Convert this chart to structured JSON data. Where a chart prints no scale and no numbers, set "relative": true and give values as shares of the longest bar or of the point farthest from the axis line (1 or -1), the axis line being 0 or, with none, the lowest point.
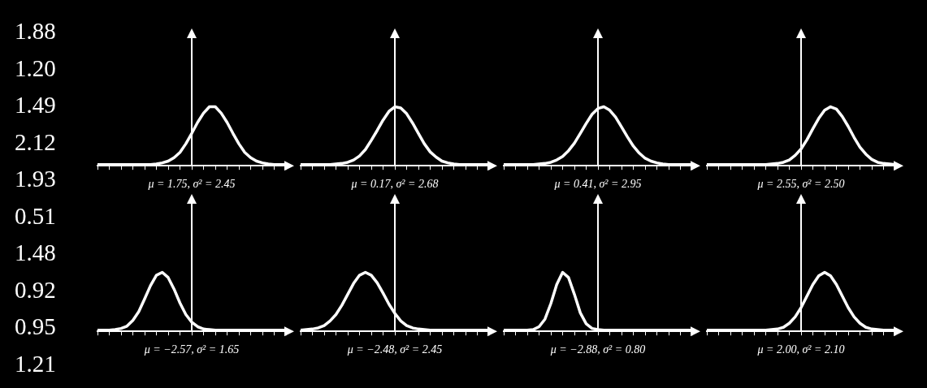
{
  "chart_data": [
    {
      "type": "other",
      "annotations": [
        "1.88",
        "1.20",
        "1.49",
        "2.12",
        "1.93",
        "0.51",
        "1.48",
        "0.92",
        "0.95",
        "1.21"
      ]
    },
    {
      "type": "line",
      "relative": true,
      "tick_labels": false,
      "marker": "none",
      "xlabel": "μ = 1.75, σ² = 2.45",
      "categories": [
        null,
        null,
        null,
        null,
        null,
        null,
        null,
        null,
        null,
        null,
        null,
        null,
        null,
        null,
        null,
        null,
        null,
        null,
        null,
        null,
        null,
        null,
        null,
        null,
        null,
        null,
        null,
        null,
        null,
        null,
        null,
        null,
        null
      ],
      "series": [
        {
          "color": "#ffffff",
          "values": [
            0,
            0,
            0,
            0,
            0,
            0,
            0,
            0,
            0,
            0,
            0.01,
            0.03,
            0.06,
            0.12,
            0.21,
            0.36,
            0.54,
            0.73,
            0.89,
            1,
            1,
            0.89,
            0.73,
            0.54,
            0.36,
            0.21,
            0.12,
            0.06,
            0.03,
            0.01,
            0,
            0,
            0
          ]
        }
      ]
    },
    {
      "type": "line",
      "relative": true,
      "tick_labels": false,
      "marker": "none",
      "xlabel": "μ = 0.17, σ² = 2.68",
      "categories": [
        null,
        null,
        null,
        null,
        null,
        null,
        null,
        null,
        null,
        null,
        null,
        null,
        null,
        null,
        null,
        null,
        null,
        null,
        null,
        null,
        null,
        null,
        null,
        null,
        null,
        null,
        null,
        null,
        null,
        null,
        null,
        null,
        null
      ],
      "series": [
        {
          "color": "#ffffff",
          "values": [
            0,
            0,
            0,
            0,
            0,
            0,
            0.01,
            0.02,
            0.04,
            0.08,
            0.15,
            0.26,
            0.42,
            0.59,
            0.77,
            0.92,
            1,
            0.98,
            0.88,
            0.72,
            0.54,
            0.36,
            0.22,
            0.13,
            0.06,
            0.03,
            0.01,
            0,
            0,
            0,
            0,
            0,
            0
          ]
        }
      ]
    },
    {
      "type": "line",
      "relative": true,
      "tick_labels": false,
      "marker": "none",
      "xlabel": "μ = 0.41, σ² = 2.95",
      "categories": [
        null,
        null,
        null,
        null,
        null,
        null,
        null,
        null,
        null,
        null,
        null,
        null,
        null,
        null,
        null,
        null,
        null,
        null,
        null,
        null,
        null,
        null,
        null,
        null,
        null,
        null,
        null,
        null,
        null,
        null,
        null,
        null,
        null
      ],
      "series": [
        {
          "color": "#ffffff",
          "values": [
            0,
            0,
            0,
            0,
            0,
            0,
            0.01,
            0.02,
            0.04,
            0.08,
            0.14,
            0.24,
            0.37,
            0.54,
            0.71,
            0.87,
            0.97,
            1,
            0.94,
            0.82,
            0.65,
            0.48,
            0.32,
            0.2,
            0.11,
            0.06,
            0.03,
            0.01,
            0,
            0,
            0,
            0,
            0
          ]
        }
      ]
    },
    {
      "type": "line",
      "relative": true,
      "tick_labels": false,
      "marker": "none",
      "xlabel": "μ = 2.55, σ² = 2.50",
      "categories": [
        null,
        null,
        null,
        null,
        null,
        null,
        null,
        null,
        null,
        null,
        null,
        null,
        null,
        null,
        null,
        null,
        null,
        null,
        null,
        null,
        null,
        null,
        null,
        null,
        null,
        null,
        null,
        null,
        null,
        null,
        null,
        null,
        null
      ],
      "series": [
        {
          "color": "#ffffff",
          "values": [
            0,
            0,
            0,
            0,
            0,
            0,
            0,
            0,
            0,
            0,
            0,
            0.01,
            0.02,
            0.04,
            0.08,
            0.16,
            0.27,
            0.43,
            0.62,
            0.8,
            0.94,
            1,
            0.96,
            0.83,
            0.66,
            0.47,
            0.3,
            0.18,
            0.09,
            0.04,
            0.02,
            0.01,
            0
          ]
        }
      ]
    },
    {
      "type": "line",
      "relative": true,
      "tick_labels": false,
      "marker": "none",
      "xlabel": "μ = −2.57, σ² = 1.65",
      "categories": [
        null,
        null,
        null,
        null,
        null,
        null,
        null,
        null,
        null,
        null,
        null,
        null,
        null,
        null,
        null,
        null,
        null,
        null,
        null,
        null,
        null,
        null,
        null,
        null,
        null,
        null,
        null,
        null,
        null,
        null,
        null,
        null,
        null
      ],
      "series": [
        {
          "color": "#ffffff",
          "values": [
            0,
            0,
            0,
            0.01,
            0.03,
            0.07,
            0.17,
            0.32,
            0.54,
            0.77,
            0.95,
            1,
            0.91,
            0.71,
            0.47,
            0.27,
            0.14,
            0.06,
            0.02,
            0.01,
            0,
            0,
            0,
            0,
            0,
            0,
            0,
            0,
            0,
            0,
            0,
            0,
            0
          ]
        }
      ]
    },
    {
      "type": "line",
      "relative": true,
      "tick_labels": false,
      "marker": "none",
      "xlabel": "μ = −2.48, σ² = 2.45",
      "categories": [
        null,
        null,
        null,
        null,
        null,
        null,
        null,
        null,
        null,
        null,
        null,
        null,
        null,
        null,
        null,
        null,
        null,
        null,
        null,
        null,
        null,
        null,
        null,
        null,
        null,
        null,
        null,
        null,
        null,
        null,
        null,
        null,
        null
      ],
      "series": [
        {
          "color": "#ffffff",
          "values": [
            0,
            0.01,
            0.02,
            0.04,
            0.08,
            0.16,
            0.27,
            0.43,
            0.62,
            0.81,
            0.95,
            1,
            0.95,
            0.82,
            0.64,
            0.45,
            0.29,
            0.16,
            0.08,
            0.04,
            0.02,
            0.01,
            0,
            0,
            0,
            0,
            0,
            0,
            0,
            0,
            0,
            0,
            0
          ]
        }
      ]
    },
    {
      "type": "line",
      "relative": true,
      "tick_labels": false,
      "marker": "none",
      "xlabel": "μ = −2.88, σ² = 0.80",
      "categories": [
        null,
        null,
        null,
        null,
        null,
        null,
        null,
        null,
        null,
        null,
        null,
        null,
        null,
        null,
        null,
        null,
        null,
        null,
        null,
        null,
        null,
        null,
        null,
        null,
        null,
        null,
        null,
        null,
        null,
        null,
        null,
        null,
        null
      ],
      "series": [
        {
          "color": "#ffffff",
          "values": [
            0,
            0,
            0,
            0,
            0,
            0.01,
            0.06,
            0.19,
            0.46,
            0.79,
            1,
            0.91,
            0.62,
            0.3,
            0.11,
            0.03,
            0.01,
            0,
            0,
            0,
            0,
            0,
            0,
            0,
            0,
            0,
            0,
            0,
            0,
            0,
            0,
            0,
            0
          ]
        }
      ]
    },
    {
      "type": "line",
      "relative": true,
      "tick_labels": false,
      "marker": "none",
      "xlabel": "μ = 2.00, σ² = 2.10",
      "categories": [
        null,
        null,
        null,
        null,
        null,
        null,
        null,
        null,
        null,
        null,
        null,
        null,
        null,
        null,
        null,
        null,
        null,
        null,
        null,
        null,
        null,
        null,
        null,
        null,
        null,
        null,
        null,
        null,
        null,
        null,
        null,
        null,
        null
      ],
      "series": [
        {
          "color": "#ffffff",
          "values": [
            0,
            0,
            0,
            0,
            0,
            0,
            0,
            0,
            0,
            0,
            0,
            0.01,
            0.02,
            0.05,
            0.12,
            0.23,
            0.39,
            0.59,
            0.79,
            0.94,
            1,
            0.94,
            0.79,
            0.59,
            0.39,
            0.23,
            0.12,
            0.05,
            0.02,
            0.01,
            0,
            0,
            0
          ]
        }
      ]
    }
  ]
}
